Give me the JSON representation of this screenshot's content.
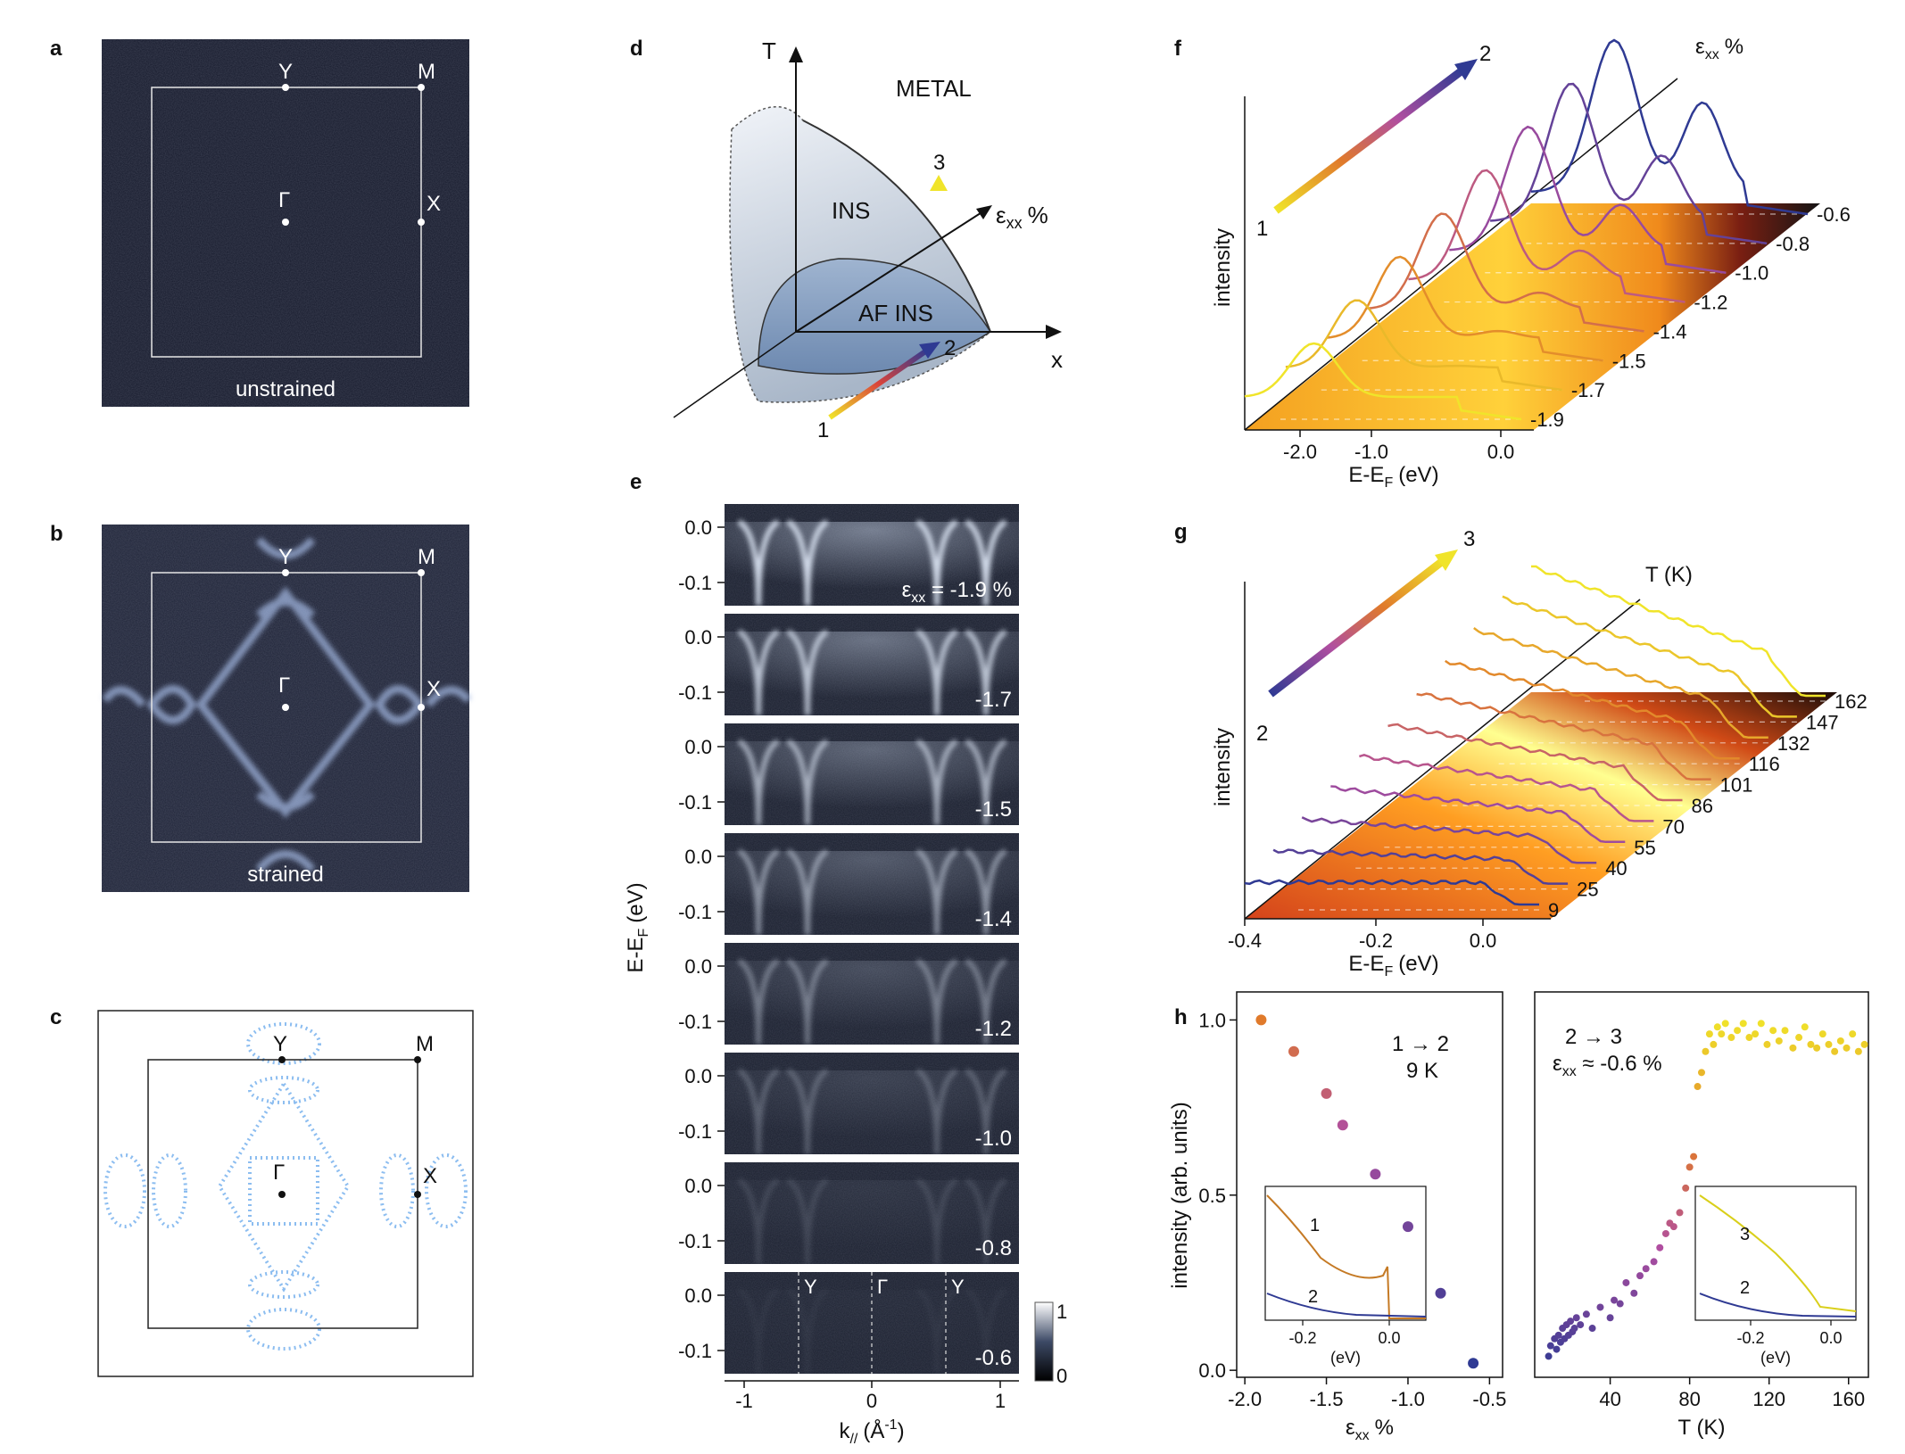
{
  "panels": {
    "a": {
      "label": "a",
      "caption": "unstrained",
      "points": [
        "Y",
        "M",
        "Γ",
        "X"
      ]
    },
    "b": {
      "label": "b",
      "caption": "strained",
      "points": [
        "Y",
        "M",
        "Γ",
        "X"
      ]
    },
    "c": {
      "label": "c",
      "points": [
        "Y",
        "M",
        "Γ",
        "X"
      ]
    },
    "d": {
      "label": "d",
      "axis_T": "T",
      "axis_x": "x",
      "axis_eps": "ε",
      "axis_eps_sub": "xx",
      "axis_eps_unit": "%",
      "region_metal": "METAL",
      "region_ins": "INS",
      "region_af": "AF INS",
      "path_points": [
        "1",
        "2",
        "3"
      ]
    },
    "e": {
      "label": "e",
      "ylabel": "E-E",
      "ylabel_sub": "F",
      "ylabel_unit": "(eV)",
      "xlabel": "k",
      "xlabel_sub": "//",
      "xlabel_unit": "(Å",
      "xlabel_sup": "-1",
      "xlabel_close": ")",
      "yticks": [
        "0.0",
        "-0.1"
      ],
      "xticks": [
        "-1",
        "0",
        "1"
      ],
      "eps_prefix": "ε",
      "eps_sub": "xx",
      "eps_first_suffix": " = -1.9 %",
      "strains": [
        -1.9,
        -1.7,
        -1.5,
        -1.4,
        -1.2,
        -1.0,
        -0.8,
        -0.6
      ],
      "strain_labels": [
        "-1.7",
        "-1.5",
        "-1.4",
        "-1.2",
        "-1.0",
        "-0.8",
        "-0.6"
      ],
      "kpoints": [
        "Y",
        "Γ",
        "Y"
      ],
      "colorbar": [
        "1",
        "0"
      ]
    },
    "f": {
      "label": "f",
      "ylabel": "intensity",
      "xlabel": "E-E",
      "xlabel_sub": "F",
      "xlabel_unit": "(eV)",
      "xticks": [
        "-2.0",
        "-1.0",
        "0.0"
      ],
      "axis_eps": "ε",
      "axis_eps_sub": "xx",
      "axis_eps_unit": "%",
      "start": "1",
      "end": "2",
      "strain_labels": [
        "-0.6",
        "-0.8",
        "-1.0",
        "-1.2",
        "-1.4",
        "-1.5",
        "-1.7",
        "-1.9"
      ]
    },
    "g": {
      "label": "g",
      "ylabel": "intensity",
      "xlabel": "E-E",
      "xlabel_sub": "F",
      "xlabel_unit": "(eV)",
      "xticks": [
        "-0.4",
        "-0.2",
        "0.0"
      ],
      "axis_T": "T (K)",
      "start": "2",
      "end": "3",
      "temp_labels": [
        "162",
        "147",
        "132",
        "116",
        "101",
        "86",
        "70",
        "55",
        "40",
        "25",
        "9"
      ]
    },
    "h": {
      "label": "h"
    }
  },
  "colors": {
    "cold": "#2f3a93",
    "mid": "#b04ea0",
    "warm": "#e07a2b",
    "hot": "#e3e11a",
    "bz_point": "#ffffff",
    "fs_blue": "#7fb6ea"
  },
  "chart_data": [
    {
      "type": "scatter",
      "id": "h-left",
      "title": "",
      "annotation": [
        "1 → 2",
        "9 K"
      ],
      "xlabel": "ε",
      "xlabel_sub": "xx",
      "xlabel_unit": "%",
      "ylabel": "intensity (arb. units)",
      "xlim": [
        -2.05,
        -0.42
      ],
      "ylim": [
        -0.02,
        1.08
      ],
      "xticks": [
        "-2.0",
        "-1.5",
        "-1.0",
        "-0.5"
      ],
      "yticks": [
        "0.0",
        "0.5",
        "1.0"
      ],
      "x": [
        -1.9,
        -1.7,
        -1.5,
        -1.4,
        -1.2,
        -1.0,
        -0.8,
        -0.6
      ],
      "y": [
        1.0,
        0.91,
        0.79,
        0.7,
        0.56,
        0.41,
        0.22,
        0.02
      ],
      "inset": {
        "xlabel": "(eV)",
        "xticks": [
          "-0.2",
          "0.0"
        ],
        "curve_labels": [
          "1",
          "2"
        ]
      }
    },
    {
      "type": "scatter",
      "id": "h-right",
      "annotation": [
        "2 → 3",
        "ε",
        "xx",
        " ≈ -0.6 %"
      ],
      "xlabel": "T (K)",
      "xlim": [
        2,
        170
      ],
      "ylim": [
        -0.02,
        1.08
      ],
      "xticks": [
        "40",
        "80",
        "120",
        "160"
      ],
      "x": [
        9,
        10,
        12,
        13,
        14,
        15,
        16,
        17,
        18,
        19,
        20,
        21,
        22,
        23,
        25,
        28,
        31,
        35,
        40,
        42,
        45,
        48,
        52,
        55,
        58,
        62,
        65,
        68,
        70,
        72,
        75,
        78,
        80,
        82,
        84,
        86,
        88,
        90,
        92,
        94,
        96,
        98,
        101,
        104,
        107,
        110,
        113,
        116,
        119,
        122,
        125,
        128,
        132,
        135,
        138,
        141,
        144,
        147,
        150,
        153,
        156,
        159,
        162,
        165,
        168
      ],
      "y": [
        0.04,
        0.07,
        0.09,
        0.06,
        0.1,
        0.08,
        0.12,
        0.09,
        0.13,
        0.1,
        0.14,
        0.11,
        0.12,
        0.15,
        0.13,
        0.16,
        0.12,
        0.18,
        0.15,
        0.2,
        0.19,
        0.25,
        0.22,
        0.27,
        0.29,
        0.31,
        0.35,
        0.39,
        0.42,
        0.41,
        0.45,
        0.52,
        0.58,
        0.61,
        0.81,
        0.85,
        0.91,
        0.96,
        0.93,
        0.98,
        0.96,
        0.99,
        0.95,
        0.97,
        0.99,
        0.95,
        0.96,
        0.99,
        0.93,
        0.97,
        0.94,
        0.97,
        0.92,
        0.95,
        0.98,
        0.93,
        0.92,
        0.96,
        0.93,
        0.91,
        0.94,
        0.92,
        0.96,
        0.91,
        0.93
      ],
      "inset": {
        "xlabel": "(eV)",
        "xticks": [
          "-0.2",
          "0.0"
        ],
        "curve_labels": [
          "3",
          "2"
        ]
      }
    }
  ]
}
